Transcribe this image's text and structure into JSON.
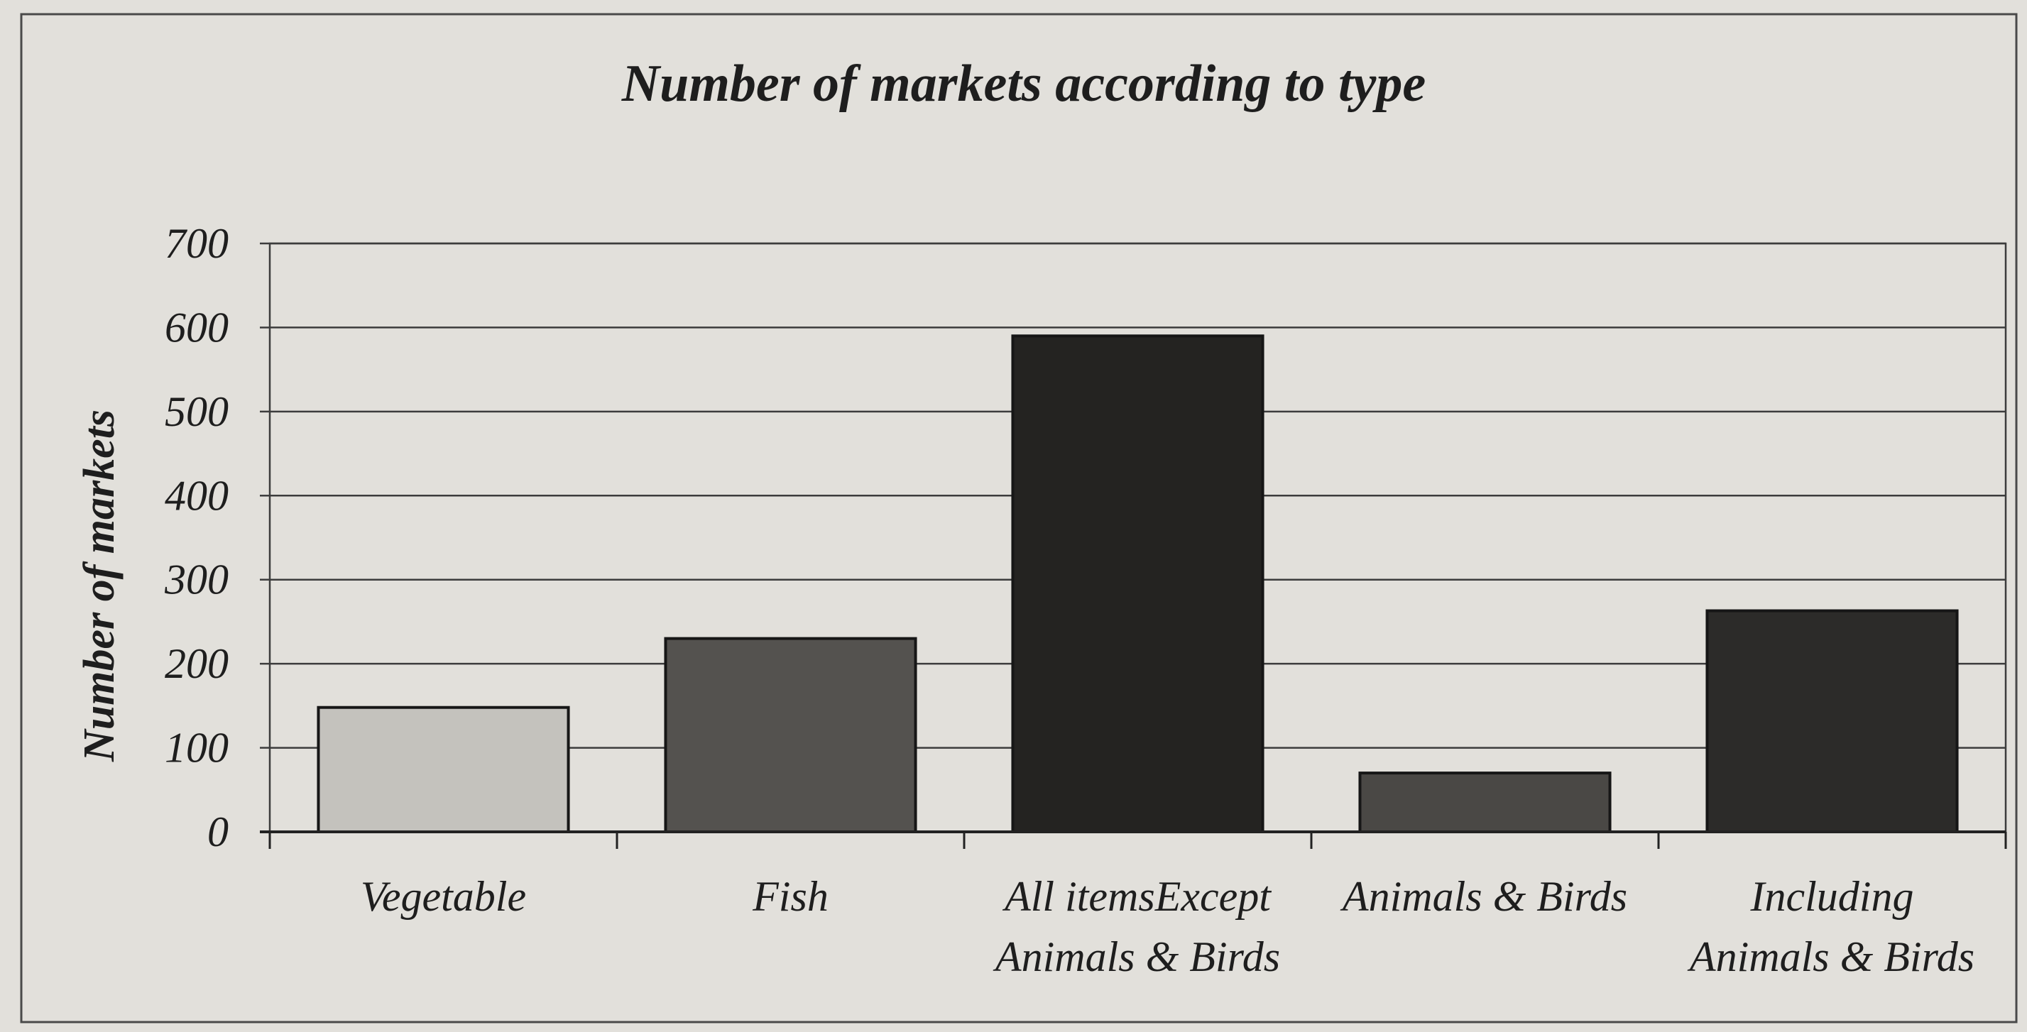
{
  "chart_data": {
    "type": "bar",
    "title": "Number of markets according to type",
    "xlabel": "",
    "ylabel": "Number of markets",
    "ylim": [
      0,
      700
    ],
    "yticks": [
      0,
      100,
      200,
      300,
      400,
      500,
      600,
      700
    ],
    "ytick_labels": [
      "0",
      "100",
      "200",
      "300",
      "400",
      "500",
      "600",
      "700"
    ],
    "grid": true,
    "legend": "none",
    "categories": [
      [
        "Vegetable"
      ],
      [
        "Fish"
      ],
      [
        "All itemsExcept",
        "Animals & Birds"
      ],
      [
        "Animals & Birds"
      ],
      [
        "Including",
        "Animals & Birds"
      ]
    ],
    "values": [
      148,
      230,
      590,
      70,
      263
    ],
    "bar_colors": [
      "#c4c2bd",
      "#54524f",
      "#242321",
      "#4a4845",
      "#2c2b29"
    ],
    "colors": {
      "background": "#e2e0db",
      "frame": "#4a4a4a",
      "grid": "#3c3c3c",
      "text": "#1e1e1e"
    }
  }
}
